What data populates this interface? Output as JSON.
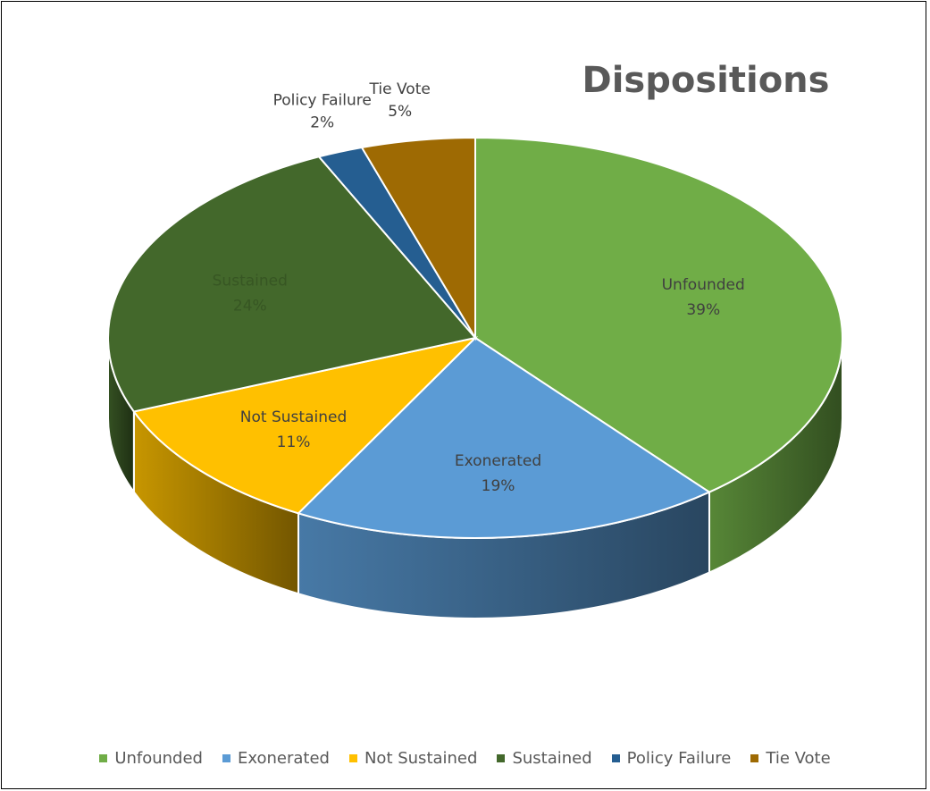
{
  "chart_data": {
    "type": "pie",
    "style": "3d",
    "title": "Dispositions",
    "categories": [
      "Unfounded",
      "Exonerated",
      "Not Sustained",
      "Sustained",
      "Policy Failure",
      "Tie Vote"
    ],
    "values": [
      39,
      19,
      11,
      24,
      2,
      5
    ],
    "value_labels": [
      "39%",
      "19%",
      "11%",
      "24%",
      "2%",
      "5%"
    ],
    "colors": [
      "#70ad47",
      "#5b9bd5",
      "#ffc000",
      "#43682b",
      "#255e91",
      "#9e6a03"
    ],
    "label_colors": [
      "#404040",
      "#404040",
      "#404040",
      "#375623",
      "#404040",
      "#404040"
    ],
    "legend_position": "bottom"
  }
}
